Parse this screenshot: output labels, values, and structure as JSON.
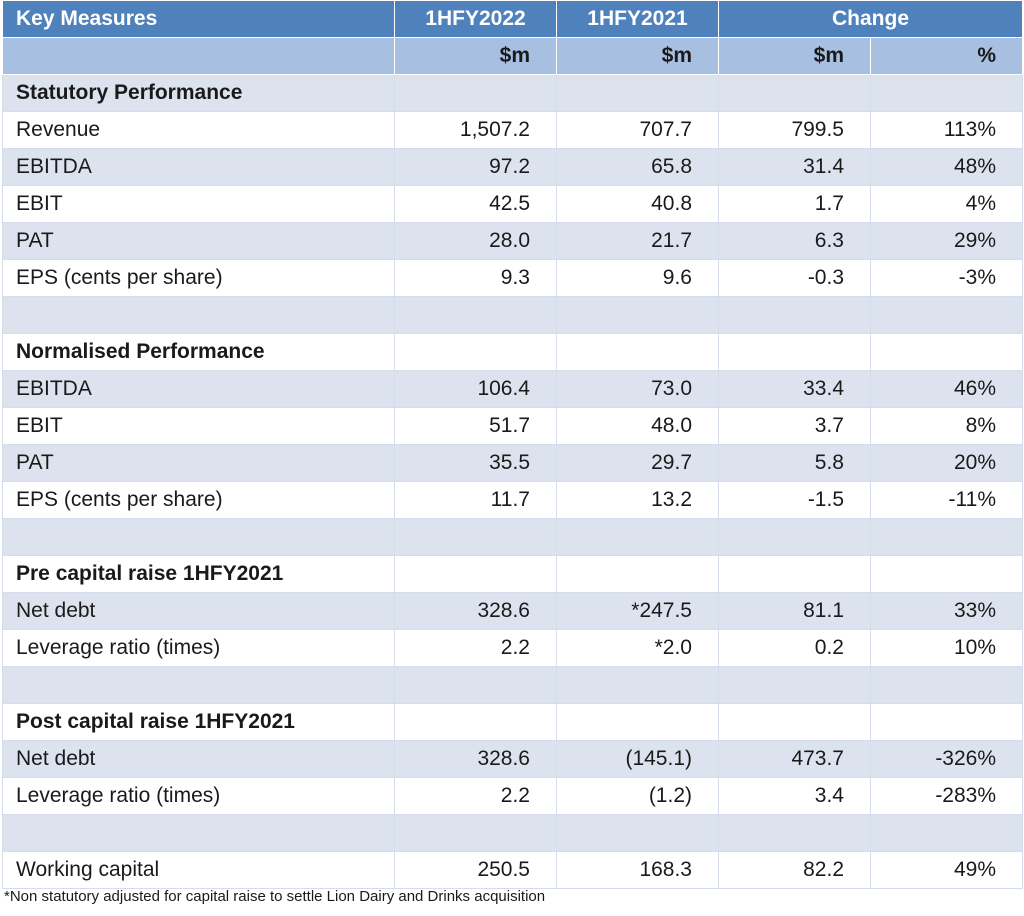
{
  "header": {
    "key_measures": "Key Measures",
    "col_1hfy2022": "1HFY2022",
    "col_1hfy2021": "1HFY2021",
    "change": "Change",
    "unit_a": "$m",
    "unit_b": "$m",
    "unit_c": "$m",
    "unit_pct": "%"
  },
  "rows": [
    {
      "label": "Statutory Performance",
      "v1": "",
      "v2": "",
      "v3": "",
      "v4": ""
    },
    {
      "label": "Revenue",
      "v1": "1,507.2",
      "v2": "707.7",
      "v3": "799.5",
      "v4": "113%"
    },
    {
      "label": "EBITDA",
      "v1": "97.2",
      "v2": "65.8",
      "v3": "31.4",
      "v4": "48%"
    },
    {
      "label": "EBIT",
      "v1": "42.5",
      "v2": "40.8",
      "v3": "1.7",
      "v4": "4%"
    },
    {
      "label": "PAT",
      "v1": "28.0",
      "v2": "21.7",
      "v3": "6.3",
      "v4": "29%"
    },
    {
      "label": "EPS (cents per share)",
      "v1": "9.3",
      "v2": "9.6",
      "v3": "-0.3",
      "v4": "-3%"
    },
    {
      "label": "",
      "v1": "",
      "v2": "",
      "v3": "",
      "v4": ""
    },
    {
      "label": "Normalised Performance",
      "v1": "",
      "v2": "",
      "v3": "",
      "v4": ""
    },
    {
      "label": "EBITDA",
      "v1": "106.4",
      "v2": "73.0",
      "v3": "33.4",
      "v4": "46%"
    },
    {
      "label": "EBIT",
      "v1": "51.7",
      "v2": "48.0",
      "v3": "3.7",
      "v4": "8%"
    },
    {
      "label": "PAT",
      "v1": "35.5",
      "v2": "29.7",
      "v3": "5.8",
      "v4": "20%"
    },
    {
      "label": "EPS (cents per share)",
      "v1": "11.7",
      "v2": "13.2",
      "v3": "-1.5",
      "v4": "-11%"
    },
    {
      "label": "",
      "v1": "",
      "v2": "",
      "v3": "",
      "v4": ""
    },
    {
      "label": "Pre capital raise 1HFY2021",
      "v1": "",
      "v2": "",
      "v3": "",
      "v4": ""
    },
    {
      "label": "Net debt",
      "v1": "328.6",
      "v2": "*247.5",
      "v3": "81.1",
      "v4": "33%"
    },
    {
      "label": "Leverage ratio (times)",
      "v1": "2.2",
      "v2": "*2.0",
      "v3": "0.2",
      "v4": "10%"
    },
    {
      "label": "",
      "v1": "",
      "v2": "",
      "v3": "",
      "v4": ""
    },
    {
      "label": "Post capital raise 1HFY2021",
      "v1": "",
      "v2": "",
      "v3": "",
      "v4": ""
    },
    {
      "label": "Net debt",
      "v1": "328.6",
      "v2": "(145.1)",
      "v3": "473.7",
      "v4": "-326%"
    },
    {
      "label": "Leverage ratio (times)",
      "v1": "2.2",
      "v2": "(1.2)",
      "v3": "3.4",
      "v4": "-283%"
    },
    {
      "label": "",
      "v1": "",
      "v2": "",
      "v3": "",
      "v4": ""
    },
    {
      "label": "Working capital",
      "v1": "250.5",
      "v2": "168.3",
      "v3": "82.2",
      "v4": "49%"
    }
  ],
  "footnote": "*Non statutory adjusted for capital raise to settle Lion Dairy and Drinks acquisition"
}
